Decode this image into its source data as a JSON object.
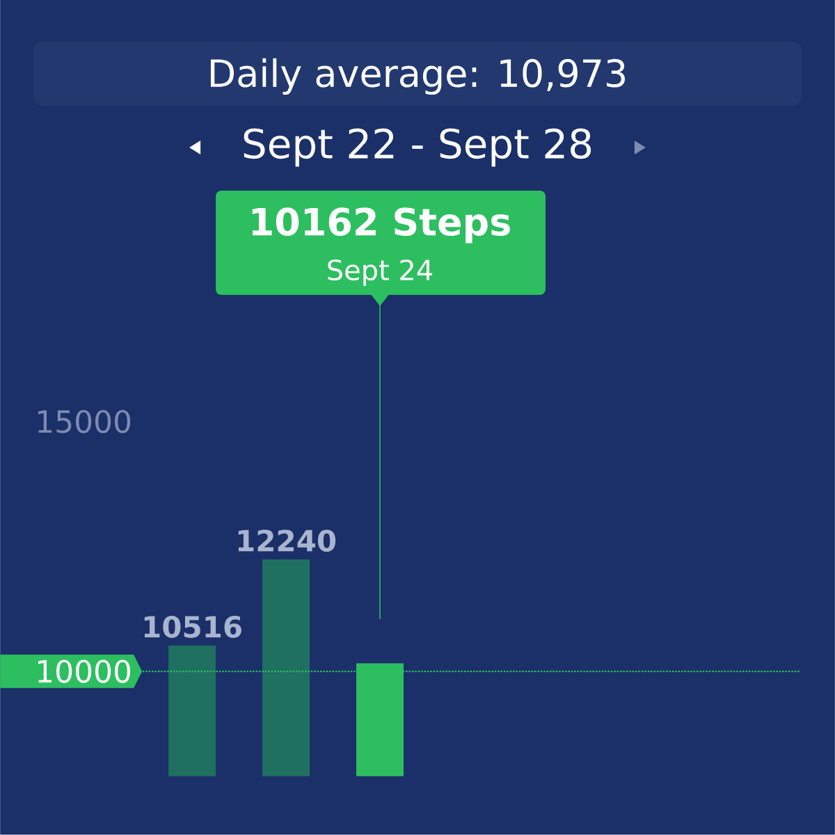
{
  "chart_data": {
    "type": "bar",
    "title": "Daily average:  10,973",
    "subtitle": "Sept 22 - Sept 28",
    "categories": [
      null,
      null,
      null,
      null,
      null,
      null,
      null
    ],
    "values": [
      10516,
      12240,
      10162,
      null,
      null,
      null,
      null
    ],
    "colors": [
      "#1f7060",
      "#1f7060",
      "#2dbe60",
      "#1f7060",
      "#1f7060",
      "#1f7060",
      "#1f7060"
    ],
    "value_labels": [
      "10516",
      "12240",
      null,
      null,
      null,
      null,
      null
    ],
    "annotations": [
      "10162 Steps",
      "Sept 24"
    ],
    "ylim": [
      7900,
      15000
    ],
    "yticks": [
      10000,
      15000
    ],
    "ref_lines": [
      {
        "axis": "y",
        "value": 10000,
        "color": "#2dbe60",
        "line_style": "dotted"
      }
    ],
    "grid": false
  }
}
